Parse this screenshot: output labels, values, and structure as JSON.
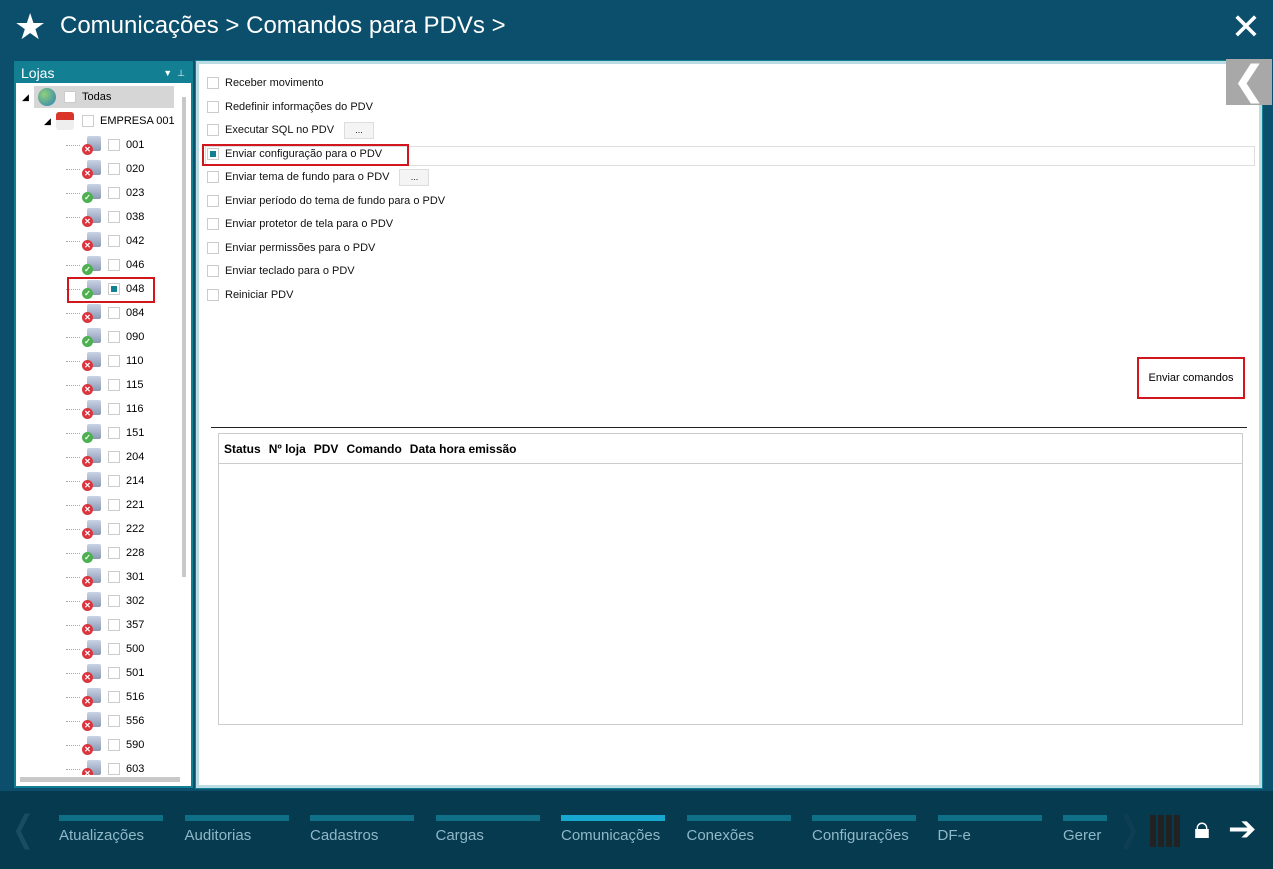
{
  "header": {
    "breadcrumb": [
      "Comunicações",
      "Comandos para PDVs"
    ],
    "separator": ">",
    "star_icon": "star-icon",
    "close_icon": "close-icon"
  },
  "left_panel": {
    "title": "Lojas",
    "root": "Todas",
    "company": "EMPRESA 001",
    "stores": [
      {
        "code": "001",
        "status": "offline",
        "checked": false
      },
      {
        "code": "020",
        "status": "offline",
        "checked": false
      },
      {
        "code": "023",
        "status": "online",
        "checked": false
      },
      {
        "code": "038",
        "status": "offline",
        "checked": false
      },
      {
        "code": "042",
        "status": "offline",
        "checked": false
      },
      {
        "code": "046",
        "status": "online",
        "checked": false
      },
      {
        "code": "048",
        "status": "online",
        "checked": true
      },
      {
        "code": "084",
        "status": "offline",
        "checked": false
      },
      {
        "code": "090",
        "status": "online",
        "checked": false
      },
      {
        "code": "110",
        "status": "offline",
        "checked": false
      },
      {
        "code": "115",
        "status": "offline",
        "checked": false
      },
      {
        "code": "116",
        "status": "offline",
        "checked": false
      },
      {
        "code": "151",
        "status": "online",
        "checked": false
      },
      {
        "code": "204",
        "status": "offline",
        "checked": false
      },
      {
        "code": "214",
        "status": "offline",
        "checked": false
      },
      {
        "code": "221",
        "status": "offline",
        "checked": false
      },
      {
        "code": "222",
        "status": "offline",
        "checked": false
      },
      {
        "code": "228",
        "status": "online",
        "checked": false
      },
      {
        "code": "301",
        "status": "offline",
        "checked": false
      },
      {
        "code": "302",
        "status": "offline",
        "checked": false
      },
      {
        "code": "357",
        "status": "offline",
        "checked": false
      },
      {
        "code": "500",
        "status": "offline",
        "checked": false
      },
      {
        "code": "501",
        "status": "offline",
        "checked": false
      },
      {
        "code": "516",
        "status": "offline",
        "checked": false
      },
      {
        "code": "556",
        "status": "offline",
        "checked": false
      },
      {
        "code": "590",
        "status": "offline",
        "checked": false
      },
      {
        "code": "603",
        "status": "offline",
        "checked": false
      }
    ]
  },
  "options": [
    {
      "label": "Receber movimento",
      "checked": false
    },
    {
      "label": "Redefinir informações do PDV",
      "checked": false
    },
    {
      "label": "Executar SQL no PDV",
      "checked": false,
      "button": "..."
    },
    {
      "label": "Enviar configuração para o PDV",
      "checked": true
    },
    {
      "label": "Enviar tema de fundo para o PDV",
      "checked": false,
      "button": "..."
    },
    {
      "label": "Enviar período do tema de fundo para o PDV",
      "checked": false
    },
    {
      "label": "Enviar protetor de tela para o PDV",
      "checked": false
    },
    {
      "label": "Enviar permissões para o PDV",
      "checked": false
    },
    {
      "label": "Enviar teclado para o PDV",
      "checked": false
    },
    {
      "label": "Reiniciar PDV",
      "checked": false
    }
  ],
  "send_button": "Enviar comandos",
  "grid": {
    "columns": [
      "Status",
      "Nº loja",
      "PDV",
      "Comando",
      "Data hora emissão"
    ]
  },
  "footer": {
    "tabs": [
      "Atualizações",
      "Auditorias",
      "Cadastros",
      "Cargas",
      "Comunicações",
      "Conexões",
      "Configurações",
      "DF-e",
      "Gerer"
    ],
    "active": "Comunicações"
  },
  "colors": {
    "accent": "#127f93",
    "header_bg": "#0b4f6c",
    "footer_bg": "#063a4f",
    "highlight": "#d2161e",
    "online": "#4caf50",
    "offline": "#d9363e"
  }
}
